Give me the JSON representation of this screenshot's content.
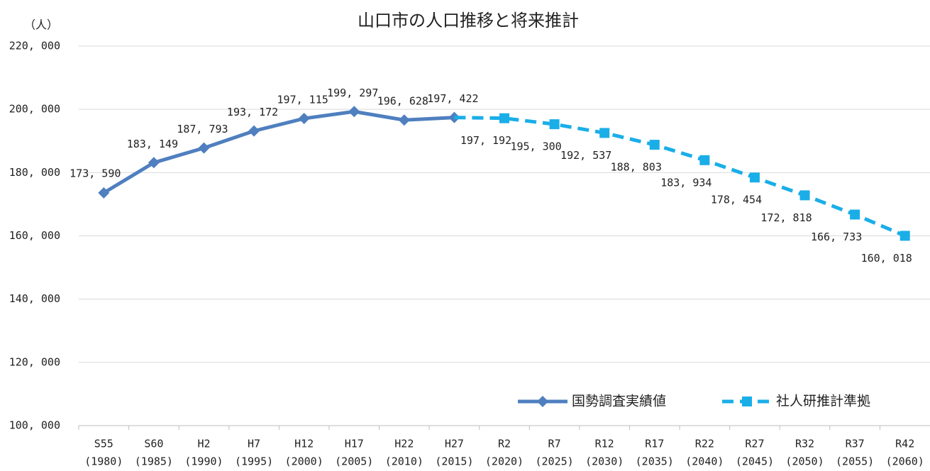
{
  "chart_data": {
    "type": "line",
    "title": "山口市の人口推移と将来推計",
    "y_label": "（人）",
    "categories": [
      [
        "S55",
        "(1980)"
      ],
      [
        "S60",
        "(1985)"
      ],
      [
        "H2",
        "(1990)"
      ],
      [
        "H7",
        "(1995)"
      ],
      [
        "H12",
        "(2000)"
      ],
      [
        "H17",
        "(2005)"
      ],
      [
        "H22",
        "(2010)"
      ],
      [
        "H27",
        "(2015)"
      ],
      [
        "R2",
        "(2020)"
      ],
      [
        "R7",
        "(2025)"
      ],
      [
        "R12",
        "(2030)"
      ],
      [
        "R17",
        "(2035)"
      ],
      [
        "R22",
        "(2040)"
      ],
      [
        "R27",
        "(2045)"
      ],
      [
        "R32",
        "(2050)"
      ],
      [
        "R37",
        "(2055)"
      ],
      [
        "R42",
        "(2060)"
      ]
    ],
    "series": [
      {
        "name": "国勢調査実績値",
        "color": "#4f7fbf",
        "dashed": false,
        "marker": "diamond",
        "values": [
          173590,
          183149,
          187793,
          193172,
          197115,
          199297,
          196628,
          197422,
          null,
          null,
          null,
          null,
          null,
          null,
          null,
          null,
          null
        ],
        "value_labels": [
          "173, 590",
          "183, 149",
          "187, 793",
          "193, 172",
          "197, 115",
          "199, 297",
          "196, 628",
          "197, 422",
          null,
          null,
          null,
          null,
          null,
          null,
          null,
          null,
          null
        ]
      },
      {
        "name": "社人研推計準拠",
        "color": "#1aaee8",
        "dashed": true,
        "marker": "square",
        "values": [
          null,
          null,
          null,
          null,
          null,
          null,
          null,
          197422,
          197192,
          195300,
          192537,
          188803,
          183934,
          178454,
          172818,
          166733,
          160018
        ],
        "value_labels": [
          null,
          null,
          null,
          null,
          null,
          null,
          null,
          null,
          "197, 192",
          "195, 300",
          "192, 537",
          "188, 803",
          "183, 934",
          "178, 454",
          "172, 818",
          "166, 733",
          "160, 018"
        ]
      }
    ],
    "ylim": [
      100000,
      220000
    ],
    "yticks": [
      {
        "value": 100000,
        "label": "100, 000"
      },
      {
        "value": 120000,
        "label": "120, 000"
      },
      {
        "value": 140000,
        "label": "140, 000"
      },
      {
        "value": 160000,
        "label": "160, 000"
      },
      {
        "value": 180000,
        "label": "180, 000"
      },
      {
        "value": 200000,
        "label": "200, 000"
      },
      {
        "value": 220000,
        "label": "220, 000"
      }
    ],
    "grid": true,
    "legend": "lower right"
  }
}
